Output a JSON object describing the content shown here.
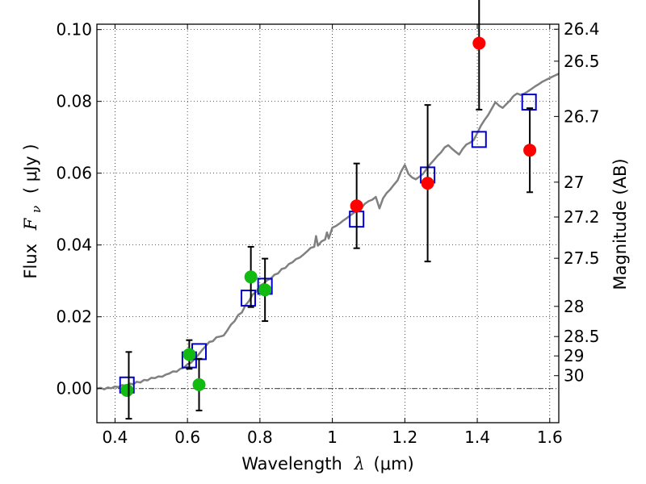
{
  "chart_data": {
    "type": "scatter",
    "xlabel_prefix": "Wavelength",
    "xlabel_symbol": "λ",
    "xlabel_unit": "(μm)",
    "ylabel_prefix": "Flux",
    "ylabel_symbol": "F",
    "ylabel_subscript": "ν",
    "ylabel_unit": "( μJy )",
    "y2label": "Magnitude (AB)",
    "xlim": [
      0.35,
      1.625
    ],
    "ylim": [
      -0.0095,
      0.1015
    ],
    "grid": true,
    "x_ticks": [
      {
        "value": 0.4,
        "label": "0.4"
      },
      {
        "value": 0.6,
        "label": "0.6"
      },
      {
        "value": 0.8,
        "label": "0.8"
      },
      {
        "value": 1.0,
        "label": "1"
      },
      {
        "value": 1.2,
        "label": "1.2"
      },
      {
        "value": 1.4,
        "label": "1.4"
      },
      {
        "value": 1.6,
        "label": "1.6"
      }
    ],
    "y_ticks": [
      {
        "value": 0.0,
        "label": "0.00"
      },
      {
        "value": 0.02,
        "label": "0.02"
      },
      {
        "value": 0.04,
        "label": "0.04"
      },
      {
        "value": 0.06,
        "label": "0.06"
      },
      {
        "value": 0.08,
        "label": "0.08"
      },
      {
        "value": 0.1,
        "label": "0.10"
      }
    ],
    "y2_ticks": [
      {
        "flux": 0.1001,
        "label": "26.4"
      },
      {
        "flux": 0.0912,
        "label": "26.5"
      },
      {
        "flux": 0.0758,
        "label": "26.7"
      },
      {
        "flux": 0.0575,
        "label": "27"
      },
      {
        "flux": 0.0478,
        "label": "27.2"
      },
      {
        "flux": 0.0363,
        "label": "27.5"
      },
      {
        "flux": 0.0229,
        "label": "28"
      },
      {
        "flux": 0.0145,
        "label": "28.5"
      },
      {
        "flux": 0.0091,
        "label": "29"
      },
      {
        "flux": 0.0036,
        "label": "30"
      }
    ],
    "colors": {
      "model_line": "#808080",
      "model_points": "#0000cc",
      "optical_points": "#11bb11",
      "nir_points": "#ff0000",
      "error_bars": "#000000",
      "zero_line": "#000000"
    },
    "series": [
      {
        "kind": "line",
        "points": [
          [
            0.35,
            0.0
          ],
          [
            0.36,
            0.0002
          ],
          [
            0.37,
            -0.0002
          ],
          [
            0.38,
            0.0003
          ],
          [
            0.39,
            0.0001
          ],
          [
            0.4,
            0.0006
          ],
          [
            0.41,
            0.0004
          ],
          [
            0.42,
            0.001
          ],
          [
            0.43,
            0.0007
          ],
          [
            0.44,
            0.0014
          ],
          [
            0.45,
            0.0012
          ],
          [
            0.46,
            0.0019
          ],
          [
            0.47,
            0.0017
          ],
          [
            0.48,
            0.0024
          ],
          [
            0.49,
            0.0023
          ],
          [
            0.5,
            0.003
          ],
          [
            0.51,
            0.0029
          ],
          [
            0.52,
            0.0034
          ],
          [
            0.53,
            0.0033
          ],
          [
            0.54,
            0.0039
          ],
          [
            0.55,
            0.0042
          ],
          [
            0.56,
            0.0048
          ],
          [
            0.57,
            0.0047
          ],
          [
            0.58,
            0.0055
          ],
          [
            0.59,
            0.0058
          ],
          [
            0.6,
            0.0068
          ],
          [
            0.61,
            0.0072
          ],
          [
            0.62,
            0.0083
          ],
          [
            0.63,
            0.0094
          ],
          [
            0.64,
            0.0107
          ],
          [
            0.65,
            0.0118
          ],
          [
            0.66,
            0.013
          ],
          [
            0.67,
            0.0132
          ],
          [
            0.68,
            0.0143
          ],
          [
            0.69,
            0.0145
          ],
          [
            0.7,
            0.0148
          ],
          [
            0.71,
            0.0162
          ],
          [
            0.72,
            0.0178
          ],
          [
            0.73,
            0.0188
          ],
          [
            0.74,
            0.0205
          ],
          [
            0.75,
            0.0212
          ],
          [
            0.76,
            0.0232
          ],
          [
            0.77,
            0.0244
          ],
          [
            0.78,
            0.0262
          ],
          [
            0.79,
            0.027
          ],
          [
            0.8,
            0.0287
          ],
          [
            0.81,
            0.0292
          ],
          [
            0.82,
            0.0302
          ],
          [
            0.83,
            0.0306
          ],
          [
            0.84,
            0.0317
          ],
          [
            0.85,
            0.0321
          ],
          [
            0.86,
            0.0333
          ],
          [
            0.87,
            0.0336
          ],
          [
            0.88,
            0.0347
          ],
          [
            0.89,
            0.0352
          ],
          [
            0.9,
            0.0361
          ],
          [
            0.91,
            0.0365
          ],
          [
            0.92,
            0.0373
          ],
          [
            0.93,
            0.0382
          ],
          [
            0.94,
            0.0392
          ],
          [
            0.95,
            0.0395
          ],
          [
            0.955,
            0.0425
          ],
          [
            0.96,
            0.0398
          ],
          [
            0.97,
            0.041
          ],
          [
            0.98,
            0.0415
          ],
          [
            0.985,
            0.0435
          ],
          [
            0.99,
            0.0418
          ],
          [
            1.0,
            0.0448
          ],
          [
            1.01,
            0.0453
          ],
          [
            1.02,
            0.046
          ],
          [
            1.03,
            0.0468
          ],
          [
            1.04,
            0.0475
          ],
          [
            1.05,
            0.0483
          ],
          [
            1.06,
            0.049
          ],
          [
            1.07,
            0.0497
          ],
          [
            1.08,
            0.0503
          ],
          [
            1.09,
            0.0515
          ],
          [
            1.1,
            0.0522
          ],
          [
            1.11,
            0.0526
          ],
          [
            1.12,
            0.0534
          ],
          [
            1.13,
            0.0502
          ],
          [
            1.14,
            0.053
          ],
          [
            1.15,
            0.0545
          ],
          [
            1.16,
            0.0555
          ],
          [
            1.17,
            0.0568
          ],
          [
            1.18,
            0.058
          ],
          [
            1.19,
            0.0605
          ],
          [
            1.2,
            0.0623
          ],
          [
            1.21,
            0.0598
          ],
          [
            1.22,
            0.0588
          ],
          [
            1.23,
            0.0583
          ],
          [
            1.24,
            0.059
          ],
          [
            1.25,
            0.0598
          ],
          [
            1.26,
            0.0612
          ],
          [
            1.27,
            0.0625
          ],
          [
            1.28,
            0.0636
          ],
          [
            1.29,
            0.0648
          ],
          [
            1.3,
            0.0658
          ],
          [
            1.31,
            0.0672
          ],
          [
            1.32,
            0.0678
          ],
          [
            1.33,
            0.0668
          ],
          [
            1.34,
            0.066
          ],
          [
            1.35,
            0.0652
          ],
          [
            1.36,
            0.0668
          ],
          [
            1.37,
            0.068
          ],
          [
            1.38,
            0.0685
          ],
          [
            1.39,
            0.0692
          ],
          [
            1.4,
            0.0712
          ],
          [
            1.41,
            0.0732
          ],
          [
            1.42,
            0.0748
          ],
          [
            1.43,
            0.0762
          ],
          [
            1.44,
            0.078
          ],
          [
            1.45,
            0.0798
          ],
          [
            1.46,
            0.0788
          ],
          [
            1.47,
            0.0782
          ],
          [
            1.48,
            0.0792
          ],
          [
            1.49,
            0.0802
          ],
          [
            1.5,
            0.0815
          ],
          [
            1.51,
            0.0822
          ],
          [
            1.52,
            0.0818
          ],
          [
            1.53,
            0.0822
          ],
          [
            1.54,
            0.0828
          ],
          [
            1.55,
            0.0835
          ],
          [
            1.56,
            0.0842
          ],
          [
            1.57,
            0.0848
          ],
          [
            1.58,
            0.0855
          ],
          [
            1.59,
            0.086
          ],
          [
            1.6,
            0.0865
          ],
          [
            1.61,
            0.087
          ],
          [
            1.625,
            0.0877
          ]
        ]
      },
      {
        "kind": "open_square",
        "points": [
          [
            0.433,
            0.001
          ],
          [
            0.605,
            0.008
          ],
          [
            0.632,
            0.0103
          ],
          [
            0.768,
            0.0252
          ],
          [
            0.814,
            0.0285
          ],
          [
            1.067,
            0.0472
          ],
          [
            1.263,
            0.0595
          ],
          [
            1.405,
            0.0694
          ],
          [
            1.543,
            0.0798
          ]
        ]
      },
      {
        "kind": "filled_circle",
        "color_key": "optical_points",
        "points": [
          {
            "x": 0.433,
            "y": -0.0005
          },
          {
            "x": 0.605,
            "y": 0.0095,
            "err": 0.004
          },
          {
            "x": 0.632,
            "y": 0.0011,
            "err": 0.0072
          },
          {
            "x": 0.775,
            "y": 0.0311,
            "err": 0.0084
          },
          {
            "x": 0.814,
            "y": 0.0275,
            "err": 0.0087
          }
        ]
      },
      {
        "kind": "filled_circle",
        "color_key": "nir_points",
        "points": [
          {
            "x": 1.067,
            "y": 0.0509,
            "err": 0.0118
          },
          {
            "x": 1.263,
            "y": 0.0572,
            "err": 0.0218
          },
          {
            "x": 1.405,
            "y": 0.0962,
            "err": 0.0185
          },
          {
            "x": 1.545,
            "y": 0.0664,
            "err": 0.0117
          }
        ]
      },
      {
        "kind": "errorbar_only",
        "points": [
          {
            "x": 0.438,
            "y": 0.0009,
            "err": 0.0093
          }
        ]
      }
    ]
  }
}
